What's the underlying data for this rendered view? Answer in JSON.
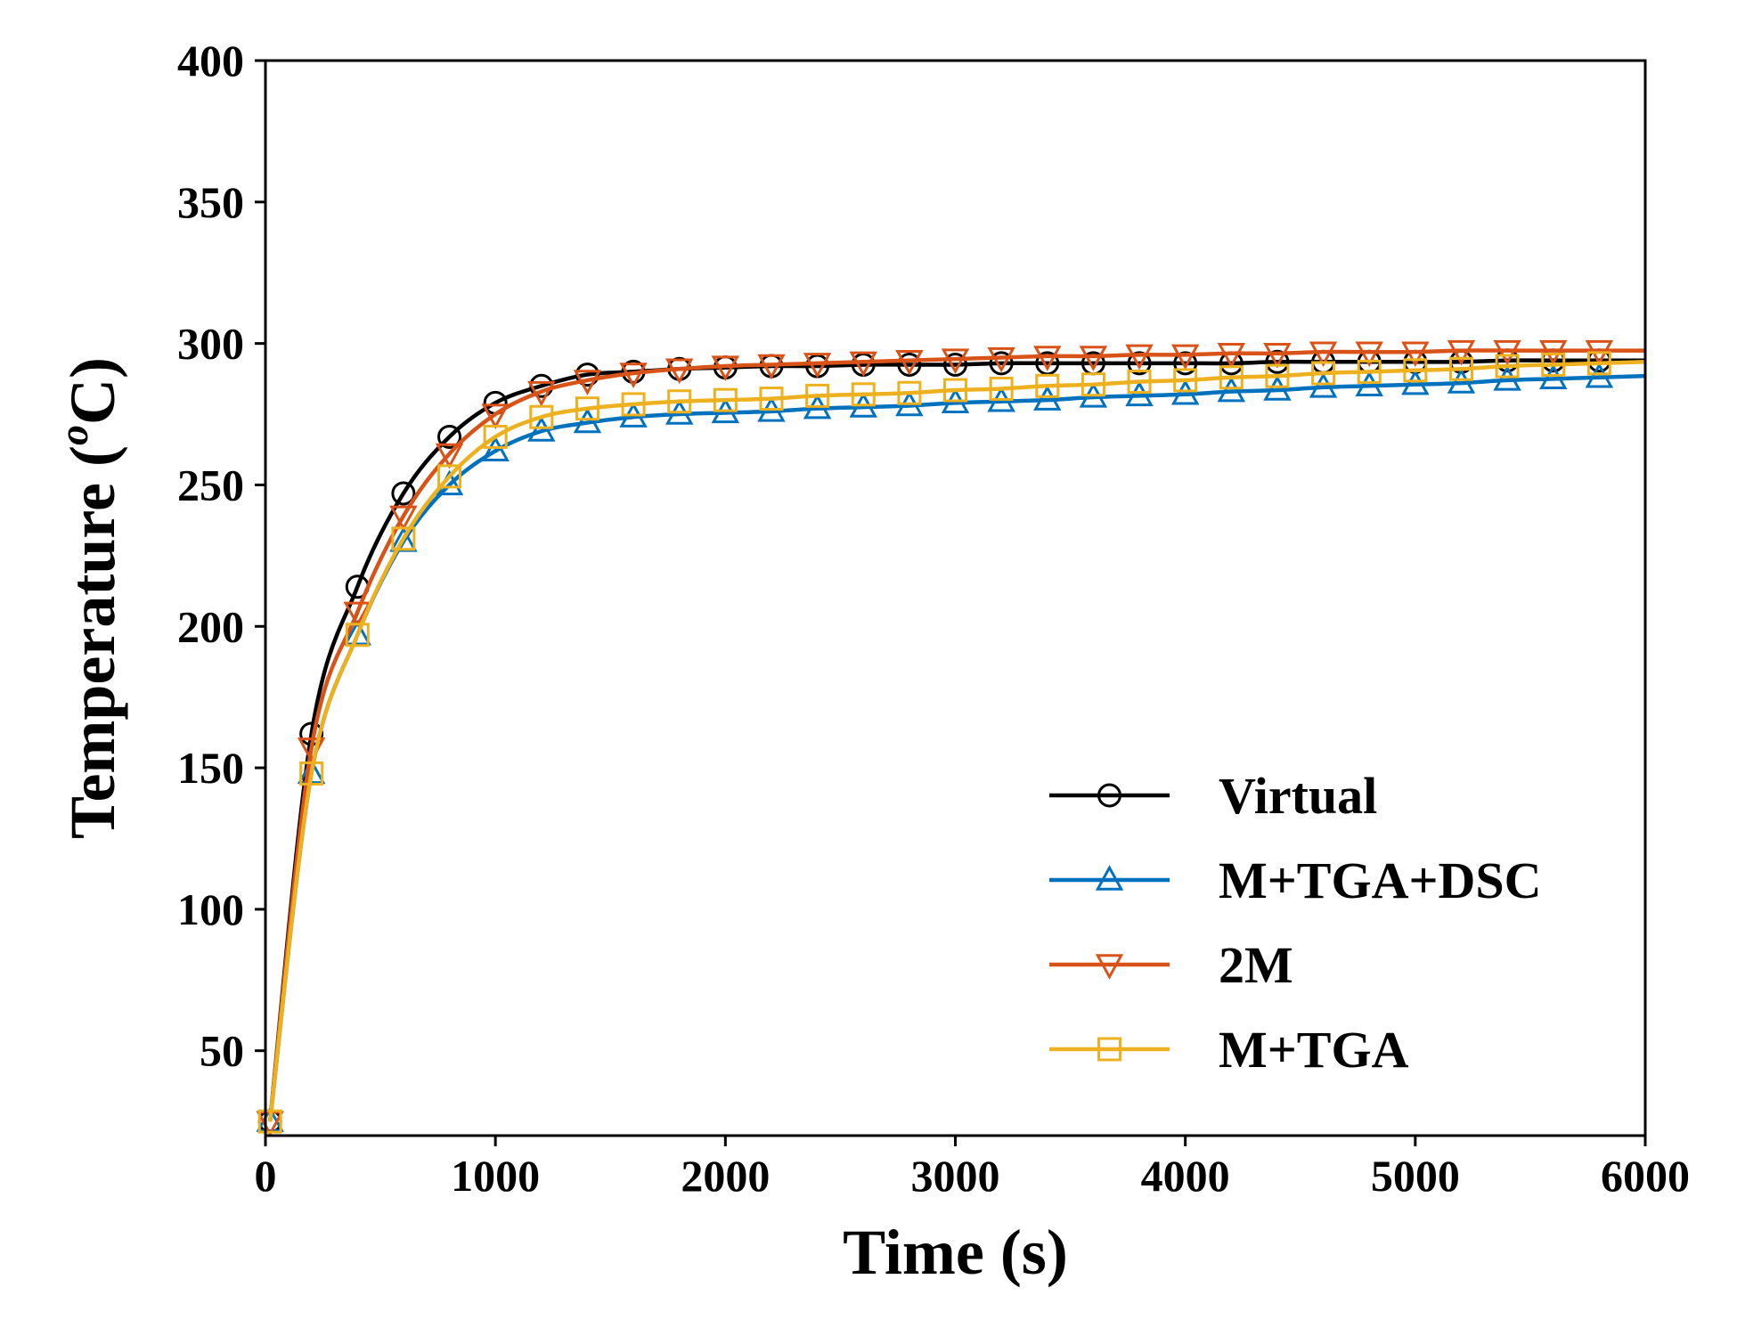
{
  "chart_data": {
    "type": "line",
    "xlabel": "Time (s)",
    "ylabel_main": "Temperature (",
    "ylabel_sup": "o",
    "ylabel_end": "C)",
    "xlim": [
      0,
      6000
    ],
    "ylim": [
      20,
      400
    ],
    "xticks": [
      0,
      1000,
      2000,
      3000,
      4000,
      5000,
      6000
    ],
    "yticks": [
      50,
      100,
      150,
      200,
      250,
      300,
      350,
      400
    ],
    "grid": false,
    "legend_position": "bottom-right",
    "marker_x": [
      20,
      200,
      400,
      600,
      800,
      1000,
      1200,
      1400,
      1600,
      1800,
      2000,
      2200,
      2400,
      2600,
      2800,
      3000,
      3200,
      3400,
      3600,
      3800,
      4000,
      4200,
      4400,
      4600,
      4800,
      5000,
      5200,
      5400,
      5600,
      5800
    ],
    "series": [
      {
        "name": "Virtual",
        "color": "#000000",
        "marker": "circle",
        "values": [
          25,
          162,
          214,
          247,
          267,
          279,
          285,
          289,
          290,
          291,
          291.5,
          292,
          292,
          292.5,
          292.5,
          292.5,
          293,
          293,
          293,
          293,
          293,
          293,
          293.5,
          293.5,
          293.5,
          293.5,
          293.5,
          294,
          294,
          294
        ]
      },
      {
        "name": "M+TGA+DSC",
        "color": "#0072BD",
        "marker": "triangle-up",
        "values": [
          25,
          148,
          197,
          230,
          250,
          262,
          269,
          272,
          274,
          275,
          275.5,
          276,
          277,
          277.5,
          278,
          279,
          279.5,
          280,
          281,
          281.5,
          282,
          283,
          283.5,
          284.5,
          285,
          285.5,
          286,
          287,
          287.5,
          288
        ]
      },
      {
        "name": "2M",
        "color": "#D95319",
        "marker": "triangle-down",
        "values": [
          25,
          157,
          205,
          239,
          261,
          275,
          283,
          287,
          289.5,
          291,
          292,
          292.5,
          293,
          293.5,
          294,
          294.5,
          295,
          295.5,
          295.5,
          296,
          296,
          296.5,
          296.5,
          297,
          297,
          297,
          297.5,
          297.5,
          297.5,
          297.5
        ]
      },
      {
        "name": "M+TGA",
        "color": "#EDB120",
        "marker": "square",
        "values": [
          25,
          148,
          197,
          231,
          253,
          267,
          274,
          277,
          278.5,
          279.5,
          280,
          280.5,
          281.5,
          282,
          282.5,
          283.5,
          284,
          285,
          285.5,
          286.5,
          287,
          288,
          288.5,
          289.5,
          290,
          290.5,
          291,
          292,
          292.5,
          293
        ]
      }
    ]
  }
}
